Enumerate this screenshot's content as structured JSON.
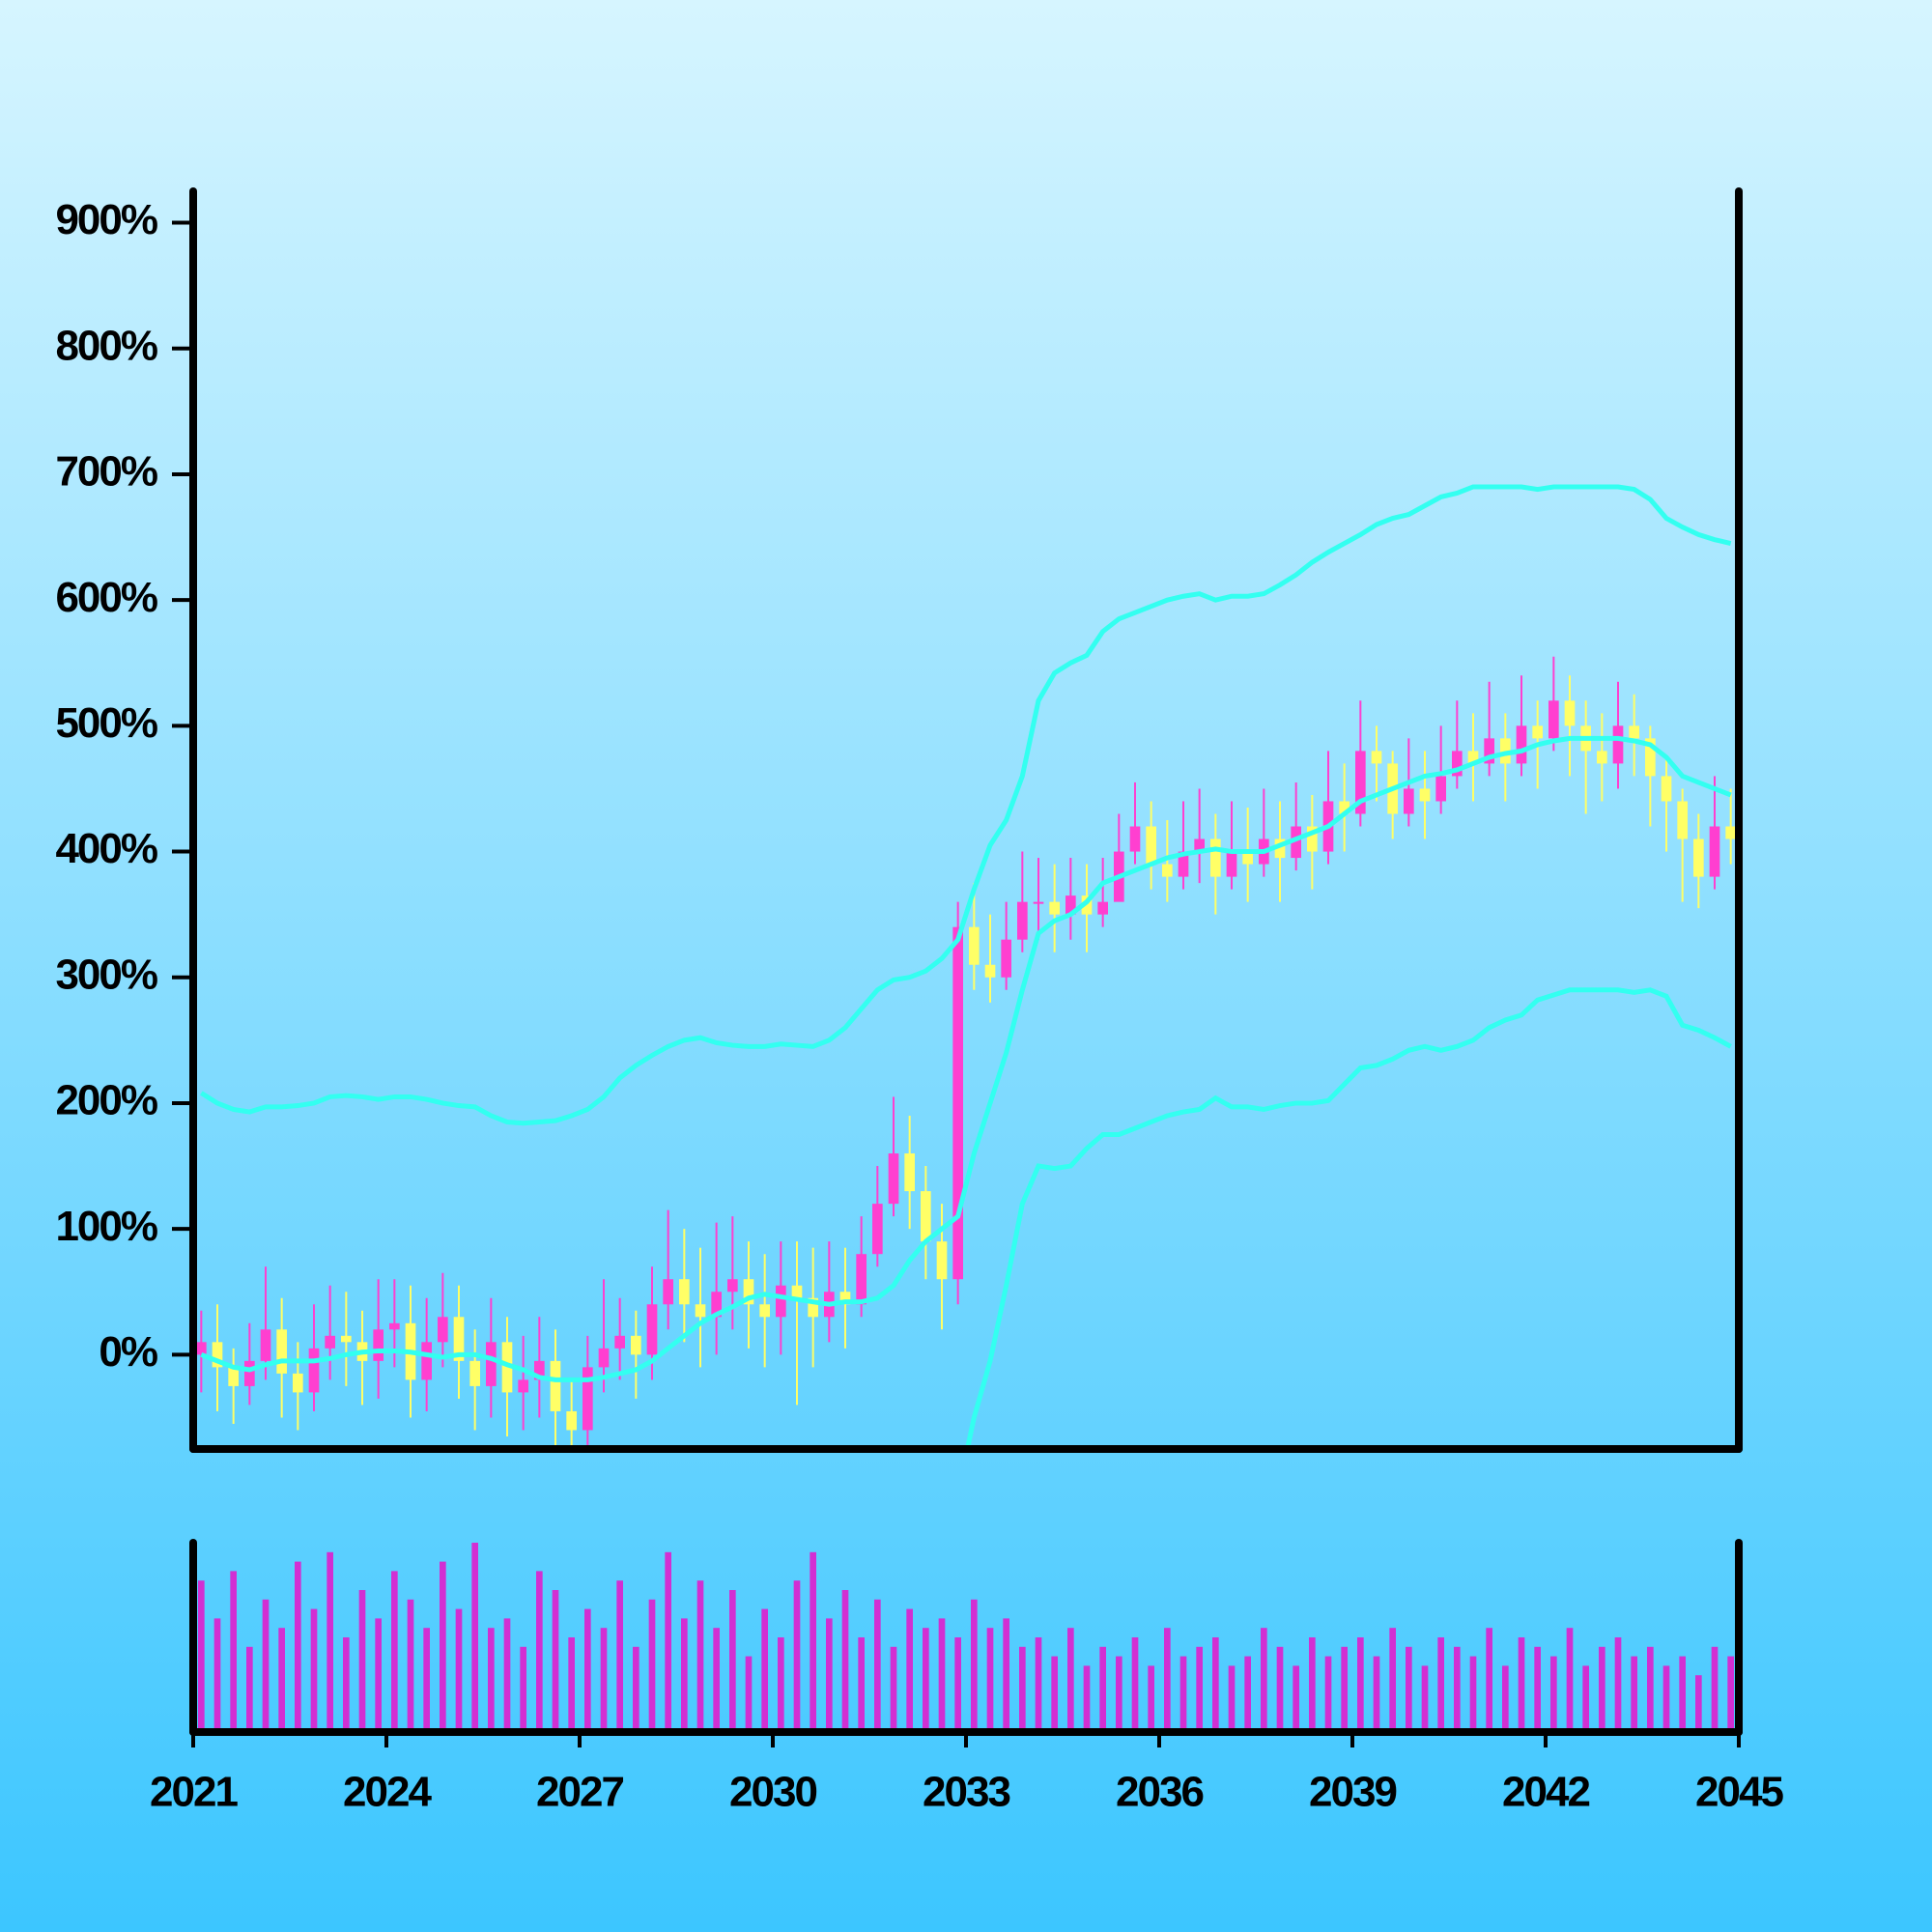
{
  "chart_data": {
    "type": "candlestick",
    "x": [
      2021.125,
      2021.375,
      2021.625,
      2021.875,
      2022.125,
      2022.375,
      2022.625,
      2022.875,
      2023.125,
      2023.375,
      2023.625,
      2023.875,
      2024.125,
      2024.375,
      2024.625,
      2024.875,
      2025.125,
      2025.375,
      2025.625,
      2025.875,
      2026.125,
      2026.375,
      2026.625,
      2026.875,
      2027.125,
      2027.375,
      2027.625,
      2027.875,
      2028.125,
      2028.375,
      2028.625,
      2028.875,
      2029.125,
      2029.375,
      2029.625,
      2029.875,
      2030.125,
      2030.375,
      2030.625,
      2030.875,
      2031.125,
      2031.375,
      2031.625,
      2031.875,
      2032.125,
      2032.375,
      2032.625,
      2032.875,
      2033.125,
      2033.375,
      2033.625,
      2033.875,
      2034.125,
      2034.375,
      2034.625,
      2034.875,
      2035.125,
      2035.375,
      2035.625,
      2035.875,
      2036.125,
      2036.375,
      2036.625,
      2036.875,
      2037.125,
      2037.375,
      2037.625,
      2037.875,
      2038.125,
      2038.375,
      2038.625,
      2038.875,
      2039.125,
      2039.375,
      2039.625,
      2039.875,
      2040.125,
      2040.375,
      2040.625,
      2040.875,
      2041.125,
      2041.375,
      2041.625,
      2041.875,
      2042.125,
      2042.375,
      2042.625,
      2042.875,
      2043.125,
      2043.375,
      2043.625,
      2043.875,
      2044.125,
      2044.375,
      2044.625,
      2044.875
    ],
    "open": [
      0,
      10,
      -10,
      -25,
      -5,
      20,
      -15,
      -30,
      5,
      15,
      10,
      -5,
      20,
      25,
      -20,
      10,
      30,
      -5,
      -25,
      10,
      -30,
      -20,
      -5,
      -45,
      -60,
      -10,
      5,
      15,
      0,
      40,
      60,
      40,
      30,
      50,
      60,
      40,
      30,
      55,
      45,
      30,
      50,
      40,
      80,
      120,
      160,
      130,
      90,
      60,
      340,
      310,
      300,
      330,
      360,
      360,
      350,
      365,
      350,
      360,
      400,
      420,
      390,
      380,
      400,
      410,
      380,
      400,
      390,
      410,
      395,
      420,
      400,
      440,
      430,
      480,
      470,
      430,
      450,
      440,
      460,
      480,
      470,
      490,
      470,
      500,
      490,
      520,
      500,
      480,
      470,
      500,
      490,
      460,
      440,
      410,
      380,
      420
    ],
    "high": [
      35,
      40,
      5,
      25,
      70,
      45,
      10,
      40,
      55,
      50,
      35,
      60,
      60,
      55,
      45,
      65,
      55,
      20,
      45,
      30,
      15,
      30,
      20,
      -20,
      15,
      60,
      45,
      35,
      70,
      115,
      100,
      85,
      105,
      110,
      90,
      80,
      90,
      90,
      85,
      90,
      85,
      110,
      150,
      205,
      190,
      150,
      120,
      360,
      375,
      350,
      360,
      400,
      395,
      390,
      395,
      390,
      395,
      430,
      455,
      440,
      425,
      440,
      450,
      430,
      440,
      435,
      450,
      440,
      455,
      445,
      480,
      470,
      520,
      500,
      480,
      490,
      480,
      500,
      520,
      510,
      535,
      510,
      540,
      520,
      555,
      540,
      520,
      510,
      535,
      525,
      500,
      475,
      450,
      430,
      460,
      450
    ],
    "low": [
      -30,
      -45,
      -55,
      -40,
      -20,
      -50,
      -60,
      -45,
      -20,
      -25,
      -40,
      -35,
      -10,
      -50,
      -45,
      -10,
      -35,
      -60,
      -50,
      -65,
      -60,
      -50,
      -75,
      -75,
      -75,
      -30,
      -20,
      -35,
      -20,
      20,
      10,
      -10,
      0,
      20,
      5,
      -10,
      0,
      -40,
      -10,
      10,
      5,
      30,
      70,
      110,
      100,
      60,
      20,
      40,
      290,
      280,
      290,
      320,
      330,
      320,
      330,
      320,
      340,
      370,
      390,
      370,
      360,
      370,
      375,
      350,
      370,
      360,
      380,
      360,
      385,
      370,
      390,
      400,
      420,
      440,
      410,
      420,
      410,
      430,
      450,
      440,
      460,
      440,
      460,
      450,
      480,
      460,
      430,
      440,
      450,
      460,
      420,
      400,
      360,
      355,
      370,
      390
    ],
    "close": [
      10,
      -10,
      -25,
      -5,
      20,
      -15,
      -30,
      5,
      15,
      10,
      -5,
      20,
      25,
      -20,
      10,
      30,
      -5,
      -25,
      10,
      -30,
      -20,
      -5,
      -45,
      -60,
      -10,
      5,
      15,
      0,
      40,
      60,
      40,
      30,
      50,
      60,
      40,
      30,
      55,
      45,
      30,
      50,
      40,
      80,
      120,
      160,
      130,
      90,
      60,
      340,
      310,
      300,
      330,
      360,
      360,
      350,
      365,
      350,
      360,
      400,
      420,
      390,
      380,
      400,
      410,
      380,
      400,
      390,
      410,
      395,
      420,
      400,
      440,
      430,
      480,
      470,
      430,
      450,
      440,
      460,
      480,
      470,
      490,
      470,
      500,
      490,
      520,
      500,
      480,
      470,
      500,
      490,
      460,
      440,
      410,
      380,
      420,
      410
    ],
    "volume": [
      80,
      60,
      85,
      45,
      70,
      55,
      90,
      65,
      95,
      50,
      75,
      60,
      85,
      70,
      55,
      90,
      65,
      100,
      55,
      60,
      45,
      85,
      75,
      50,
      65,
      55,
      80,
      45,
      70,
      95,
      60,
      80,
      55,
      75,
      40,
      65,
      50,
      80,
      95,
      60,
      75,
      50,
      70,
      45,
      65,
      55,
      60,
      50,
      70,
      55,
      60,
      45,
      50,
      40,
      55,
      35,
      45,
      40,
      50,
      35,
      55,
      40,
      45,
      50,
      35,
      40,
      55,
      45,
      35,
      50,
      40,
      45,
      50,
      40,
      55,
      45,
      35,
      50,
      45,
      40,
      55,
      35,
      50,
      45,
      40,
      55,
      35,
      45,
      50,
      40,
      45,
      35,
      40,
      30,
      45,
      40
    ],
    "overlays": [
      {
        "color": "#33fff0",
        "values": [
          208,
          200,
          195,
          193,
          197,
          197,
          198,
          200,
          205,
          206,
          205,
          203,
          205,
          205,
          203,
          200,
          198,
          197,
          190,
          185,
          184,
          185,
          186,
          190,
          195,
          205,
          220,
          230,
          238,
          245,
          250,
          252,
          248,
          246,
          245,
          245,
          247,
          246,
          245,
          250,
          260,
          275,
          290,
          298,
          300,
          305,
          315,
          330,
          370,
          405,
          425,
          460,
          520,
          542,
          550,
          556,
          575,
          585,
          590,
          595,
          600,
          603,
          605,
          600,
          603,
          603,
          605,
          612,
          620,
          630,
          638,
          645,
          652,
          660,
          665,
          668,
          675,
          682,
          685,
          690,
          690,
          690,
          690,
          688,
          690,
          690,
          690,
          690,
          690,
          688,
          680,
          665,
          658,
          652,
          648,
          645
        ]
      },
      {
        "color": "#33fff0",
        "values": [
          0,
          -5,
          -10,
          -12,
          -8,
          -5,
          -5,
          -5,
          -3,
          0,
          2,
          3,
          3,
          2,
          0,
          -2,
          0,
          0,
          -3,
          -8,
          -12,
          -18,
          -20,
          -20,
          -20,
          -18,
          -15,
          -12,
          -5,
          5,
          15,
          25,
          32,
          38,
          45,
          48,
          46,
          44,
          42,
          40,
          42,
          42,
          45,
          55,
          75,
          90,
          100,
          110,
          160,
          200,
          240,
          290,
          335,
          345,
          350,
          360,
          375,
          380,
          385,
          390,
          395,
          398,
          400,
          402,
          400,
          400,
          400,
          405,
          410,
          415,
          420,
          430,
          440,
          445,
          450,
          455,
          460,
          462,
          465,
          470,
          475,
          478,
          480,
          485,
          488,
          490,
          490,
          490,
          490,
          488,
          485,
          475,
          460,
          455,
          450,
          445
        ]
      },
      {
        "color": "#33fff0",
        "values": [
          -208,
          -210,
          -215,
          -217,
          -213,
          -207,
          -208,
          -210,
          -211,
          -206,
          -201,
          -197,
          -199,
          -201,
          -203,
          -204,
          -198,
          -197,
          -196,
          -201,
          -208,
          -221,
          -226,
          -230,
          -235,
          -241,
          -250,
          -254,
          -248,
          -235,
          -220,
          -202,
          -184,
          -170,
          -155,
          -149,
          -155,
          -158,
          -161,
          -170,
          -176,
          -191,
          -200,
          -188,
          -150,
          -125,
          -115,
          -110,
          -50,
          -5,
          55,
          120,
          150,
          148,
          150,
          164,
          175,
          175,
          180,
          185,
          190,
          193,
          195,
          204,
          197,
          197,
          195,
          198,
          200,
          200,
          202,
          215,
          228,
          230,
          235,
          242,
          245,
          242,
          245,
          250,
          260,
          266,
          270,
          282,
          286,
          290,
          290,
          290,
          290,
          288,
          290,
          285,
          262,
          258,
          252,
          245
        ]
      }
    ],
    "up_color": "#ff3fd0",
    "down_color": "#ffff66",
    "volume_color": "#d22fd2",
    "xlim": [
      2021,
      2045
    ],
    "xticks": [
      2021,
      2024,
      2027,
      2030,
      2033,
      2036,
      2039,
      2042,
      2045
    ],
    "ylim": [
      -75,
      925
    ],
    "yticks": [
      {
        "value": 0,
        "label": "0%"
      },
      {
        "value": 100,
        "label": "100%"
      },
      {
        "value": 200,
        "label": "200%"
      },
      {
        "value": 300,
        "label": "300%"
      },
      {
        "value": 400,
        "label": "400%"
      },
      {
        "value": 500,
        "label": "500%"
      },
      {
        "value": 600,
        "label": "600%"
      },
      {
        "value": 700,
        "label": "700%"
      },
      {
        "value": 800,
        "label": "800%"
      },
      {
        "value": 900,
        "label": "900%"
      }
    ],
    "volume_ylim": [
      0,
      100
    ]
  }
}
